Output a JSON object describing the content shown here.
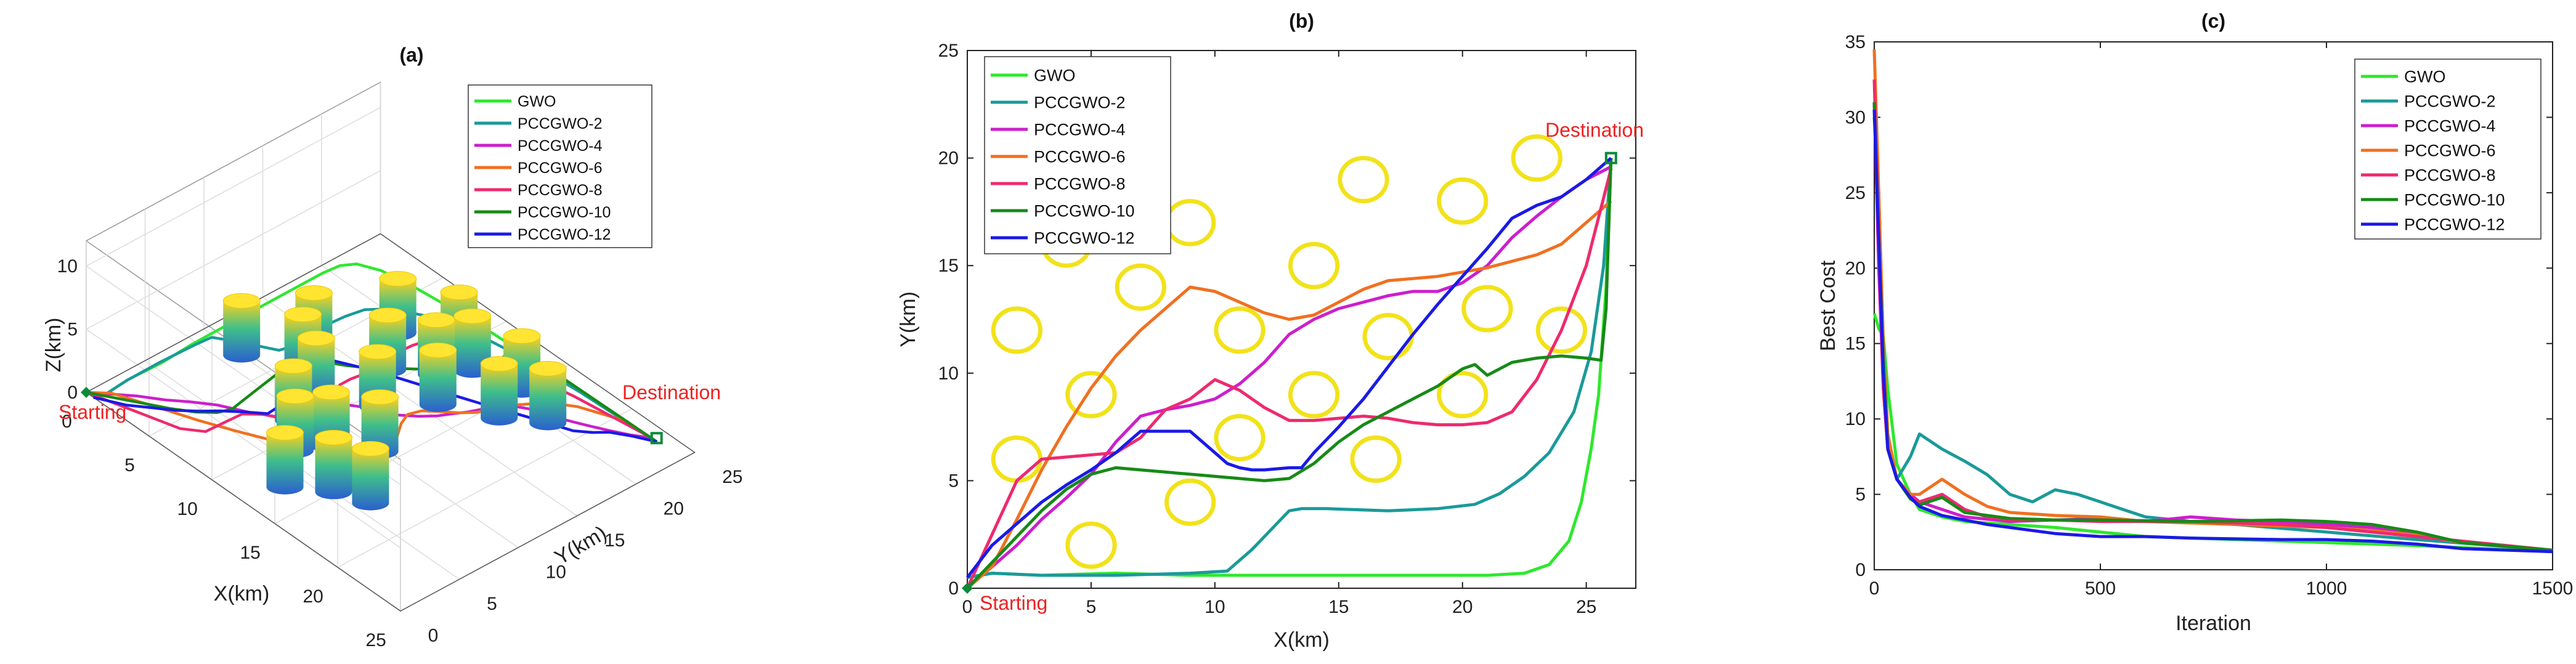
{
  "chart_data": [
    {
      "panel": "a",
      "type": "line3d",
      "title": "(a)",
      "xlabel": "X(km)",
      "ylabel": "Y(km)",
      "zlabel": "Z(km)",
      "xlim": [
        0,
        25
      ],
      "ylim": [
        0,
        25
      ],
      "zlim": [
        0,
        10
      ],
      "xticks": [
        "0",
        "5",
        "10",
        "15",
        "20",
        "25"
      ],
      "yticks": [
        "0",
        "5",
        "10",
        "15",
        "20",
        "25"
      ],
      "zticks": [
        "0",
        "5",
        "10"
      ],
      "start_label": "Starting",
      "destination_label": "Destination",
      "legend": [
        "GWO",
        "PCCGWO-2",
        "PCCGWO-4",
        "PCCGWO-6",
        "PCCGWO-8",
        "PCCGWO-10",
        "PCCGWO-12"
      ],
      "legend_position": "top-right",
      "obstacles_xy": [
        [
          13,
          3
        ],
        [
          15,
          5
        ],
        [
          11,
          6
        ],
        [
          17,
          6
        ],
        [
          9,
          8
        ],
        [
          12,
          8
        ],
        [
          14,
          10
        ],
        [
          8,
          11
        ],
        [
          6,
          12
        ],
        [
          11,
          13
        ],
        [
          5,
          14
        ],
        [
          9,
          16
        ],
        [
          13,
          16
        ],
        [
          11,
          18
        ],
        [
          3,
          10
        ],
        [
          16,
          18
        ],
        [
          18,
          20
        ],
        [
          12,
          20
        ],
        [
          7,
          19
        ],
        [
          15,
          21
        ],
        [
          10,
          21
        ]
      ]
    },
    {
      "panel": "b",
      "type": "line",
      "title": "(b)",
      "xlabel": "X(km)",
      "ylabel": "Y(km)",
      "xlim": [
        0,
        27
      ],
      "ylim": [
        0,
        25
      ],
      "xticks": [
        "0",
        "5",
        "10",
        "15",
        "20",
        "25"
      ],
      "yticks": [
        "0",
        "5",
        "10",
        "15",
        "20",
        "25"
      ],
      "start_label": "Starting",
      "destination_label": "Destination",
      "start": [
        0,
        0
      ],
      "destination": [
        26,
        20
      ],
      "obstacles": [
        [
          4,
          16
        ],
        [
          7,
          14
        ],
        [
          9,
          17
        ],
        [
          2,
          12
        ],
        [
          5,
          9
        ],
        [
          11,
          12
        ],
        [
          14,
          15
        ],
        [
          16,
          19
        ],
        [
          20,
          18
        ],
        [
          23,
          20
        ],
        [
          21,
          13
        ],
        [
          17,
          11.7
        ],
        [
          24,
          12
        ],
        [
          14,
          9
        ],
        [
          20,
          9
        ],
        [
          11,
          7
        ],
        [
          9,
          4
        ],
        [
          5,
          2
        ],
        [
          2,
          6
        ],
        [
          16.5,
          6
        ]
      ],
      "legend": [
        "GWO",
        "PCCGWO-2",
        "PCCGWO-4",
        "PCCGWO-6",
        "PCCGWO-8",
        "PCCGWO-10",
        "PCCGWO-12"
      ],
      "legend_position": "top-left",
      "series": [
        {
          "name": "GWO",
          "color": "#2ee82e",
          "x": [
            0,
            1,
            3,
            6,
            9,
            12,
            15,
            18,
            21,
            22.5,
            23.5,
            24.3,
            24.8,
            25.2,
            25.5,
            25.8,
            26
          ],
          "y": [
            0.5,
            0.7,
            0.6,
            0.7,
            0.6,
            0.6,
            0.6,
            0.6,
            0.6,
            0.7,
            1.1,
            2.2,
            4,
            6.5,
            9,
            14,
            20
          ]
        },
        {
          "name": "PCCGWO-2",
          "color": "#1a9a9a",
          "x": [
            0,
            1,
            3,
            6,
            9,
            10.5,
            11.5,
            12.5,
            13,
            13.5,
            14.5,
            17,
            19,
            20.5,
            21.5,
            22.5,
            23.5,
            24.5,
            25.2,
            25.7,
            26
          ],
          "y": [
            0.5,
            0.7,
            0.6,
            0.6,
            0.7,
            0.8,
            1.8,
            3,
            3.6,
            3.7,
            3.7,
            3.6,
            3.7,
            3.9,
            4.4,
            5.2,
            6.3,
            8.2,
            11,
            15,
            20
          ]
        },
        {
          "name": "PCCGWO-4",
          "color": "#cc1fcc",
          "x": [
            0,
            1,
            2,
            3,
            4,
            5,
            6,
            7,
            8,
            9,
            10,
            11,
            12,
            13,
            14,
            15,
            16,
            17,
            18,
            19,
            20,
            21,
            22,
            23,
            24,
            25,
            26
          ],
          "y": [
            0,
            1,
            2,
            3.2,
            4.2,
            5.3,
            6.8,
            8,
            8.3,
            8.5,
            8.8,
            9.5,
            10.5,
            11.8,
            12.5,
            13,
            13.3,
            13.6,
            13.8,
            13.8,
            14.2,
            15,
            16.3,
            17.3,
            18.2,
            19,
            19.6
          ]
        },
        {
          "name": "PCCGWO-6",
          "color": "#f07020",
          "x": [
            0,
            1,
            2,
            3,
            4,
            5,
            6,
            7,
            8,
            9,
            10,
            11,
            12,
            13,
            14,
            15,
            16,
            17,
            18,
            19,
            20,
            21,
            22,
            23,
            24,
            25,
            26
          ],
          "y": [
            0,
            1,
            3.2,
            5.5,
            7.5,
            9.3,
            10.8,
            12,
            13,
            14,
            13.8,
            13.3,
            12.8,
            12.5,
            12.7,
            13.3,
            13.9,
            14.3,
            14.4,
            14.5,
            14.7,
            14.9,
            15.2,
            15.5,
            16,
            17,
            18
          ]
        },
        {
          "name": "PCCGWO-8",
          "color": "#ee2a6e",
          "x": [
            0,
            1,
            2,
            3,
            4,
            5,
            6,
            7,
            8,
            9,
            10,
            11,
            12,
            13,
            14,
            15,
            16,
            17,
            18,
            19,
            20,
            21,
            22,
            23,
            24,
            25,
            26
          ],
          "y": [
            0,
            2.5,
            5,
            6,
            6.1,
            6.2,
            6.3,
            7,
            8.3,
            8.8,
            9.7,
            9.2,
            8.4,
            7.8,
            7.8,
            7.9,
            8,
            7.9,
            7.7,
            7.6,
            7.6,
            7.7,
            8.2,
            9.7,
            12,
            15,
            19.5
          ]
        },
        {
          "name": "PCCGWO-10",
          "color": "#178a17",
          "x": [
            0,
            1,
            2,
            3,
            4,
            5,
            6,
            7,
            8,
            9,
            10,
            11,
            12,
            13,
            14,
            15,
            16,
            17,
            18,
            19,
            20,
            20.5,
            21,
            22,
            23,
            24,
            25,
            25.6,
            25.8,
            26
          ],
          "y": [
            0,
            1.2,
            2.4,
            3.6,
            4.6,
            5.3,
            5.6,
            5.5,
            5.4,
            5.3,
            5.2,
            5.1,
            5,
            5.1,
            5.8,
            6.8,
            7.6,
            8.2,
            8.8,
            9.4,
            10.2,
            10.4,
            9.9,
            10.5,
            10.7,
            10.8,
            10.7,
            10.6,
            13,
            20
          ]
        },
        {
          "name": "PCCGWO-12",
          "color": "#1a1ae6",
          "x": [
            0,
            1,
            2,
            3,
            4,
            5,
            6,
            6.5,
            7,
            8,
            9,
            10,
            10.5,
            11,
            11.5,
            12,
            13,
            13.5,
            14,
            15,
            16,
            17,
            18,
            19,
            20,
            21,
            22,
            23,
            24,
            25,
            26
          ],
          "y": [
            0.5,
            2,
            3,
            4,
            4.8,
            5.5,
            6.3,
            6.8,
            7.3,
            7.3,
            7.3,
            6.3,
            5.8,
            5.6,
            5.5,
            5.5,
            5.6,
            5.6,
            6.3,
            7.5,
            8.8,
            10.3,
            11.8,
            13.2,
            14.5,
            15.8,
            17.2,
            17.8,
            18.2,
            19,
            20
          ]
        }
      ]
    },
    {
      "panel": "c",
      "type": "line",
      "title": "(c)",
      "xlabel": "Iteration",
      "ylabel": "Best Cost",
      "xlim": [
        0,
        1500
      ],
      "ylim": [
        0,
        35
      ],
      "xticks": [
        "0",
        "500",
        "1000",
        "1500"
      ],
      "yticks": [
        "0",
        "5",
        "10",
        "15",
        "20",
        "25",
        "30",
        "35"
      ],
      "legend": [
        "GWO",
        "PCCGWO-2",
        "PCCGWO-4",
        "PCCGWO-6",
        "PCCGWO-8",
        "PCCGWO-10",
        "PCCGWO-12"
      ],
      "legend_position": "top-right",
      "series": [
        {
          "name": "GWO",
          "color": "#2ee82e",
          "x": [
            0,
            10,
            20,
            30,
            50,
            80,
            100,
            150,
            200,
            300,
            400,
            500,
            600,
            800,
            1000,
            1200,
            1500
          ],
          "y": [
            17,
            16,
            15.5,
            12,
            7,
            5,
            4,
            3.5,
            3.2,
            3,
            2.8,
            2.5,
            2.2,
            2,
            1.8,
            1.6,
            1.2
          ]
        },
        {
          "name": "PCCGWO-2",
          "color": "#1a9a9a",
          "x": [
            0,
            10,
            20,
            30,
            50,
            80,
            100,
            150,
            200,
            250,
            300,
            350,
            400,
            450,
            500,
            550,
            600,
            700,
            800,
            1000,
            1200,
            1500
          ],
          "y": [
            30,
            25,
            15,
            9,
            6,
            7.5,
            9,
            8,
            7.2,
            6.3,
            5,
            4.5,
            5.3,
            5,
            4.5,
            4,
            3.5,
            3.2,
            3,
            2.5,
            2,
            1.3
          ]
        },
        {
          "name": "PCCGWO-4",
          "color": "#cc1fcc",
          "x": [
            0,
            10,
            20,
            30,
            50,
            80,
            100,
            150,
            200,
            300,
            400,
            500,
            600,
            700,
            800,
            900,
            1000,
            1100,
            1200,
            1300,
            1500
          ],
          "y": [
            31,
            20,
            12,
            8,
            6,
            5,
            4.5,
            4,
            3.5,
            3.2,
            3.3,
            3.4,
            3.2,
            3.5,
            3.3,
            3.2,
            3,
            2.8,
            2.3,
            1.8,
            1.3
          ]
        },
        {
          "name": "PCCGWO-6",
          "color": "#f07020",
          "x": [
            0,
            10,
            20,
            30,
            50,
            80,
            100,
            150,
            200,
            250,
            300,
            400,
            500,
            600,
            800,
            1000,
            1100,
            1200,
            1300,
            1500
          ],
          "y": [
            34.5,
            25,
            15,
            9,
            6,
            5,
            5,
            6,
            5,
            4.2,
            3.8,
            3.6,
            3.5,
            3.2,
            3,
            2.8,
            2.6,
            2.3,
            1.8,
            1.3
          ]
        },
        {
          "name": "PCCGWO-8",
          "color": "#ee2a6e",
          "x": [
            0,
            10,
            20,
            30,
            50,
            80,
            100,
            150,
            200,
            250,
            300,
            400,
            500,
            700,
            900,
            1000,
            1200,
            1500
          ],
          "y": [
            32.5,
            22,
            12,
            8,
            6,
            4.8,
            4.5,
            5,
            4,
            3.5,
            3.3,
            3.3,
            3.2,
            3.2,
            3,
            2.8,
            2.2,
            1.3
          ]
        },
        {
          "name": "PCCGWO-10",
          "color": "#178a17",
          "x": [
            0,
            10,
            20,
            30,
            50,
            80,
            100,
            150,
            200,
            300,
            400,
            500,
            700,
            900,
            1000,
            1100,
            1200,
            1300,
            1500
          ],
          "y": [
            31,
            22,
            14,
            8,
            6,
            4.7,
            4.3,
            4.8,
            3.8,
            3.4,
            3.3,
            3.3,
            3.2,
            3.3,
            3.2,
            3,
            2.5,
            1.8,
            1.3
          ]
        },
        {
          "name": "PCCGWO-12",
          "color": "#1a1ae6",
          "x": [
            0,
            10,
            20,
            30,
            50,
            80,
            100,
            150,
            200,
            250,
            300,
            400,
            500,
            600,
            700,
            900,
            1000,
            1100,
            1200,
            1300,
            1500
          ],
          "y": [
            30.5,
            22,
            13,
            8,
            6,
            4.8,
            4.2,
            3.6,
            3.3,
            3,
            2.8,
            2.4,
            2.2,
            2.2,
            2.1,
            2,
            2,
            1.9,
            1.7,
            1.4,
            1.2
          ]
        }
      ]
    }
  ]
}
